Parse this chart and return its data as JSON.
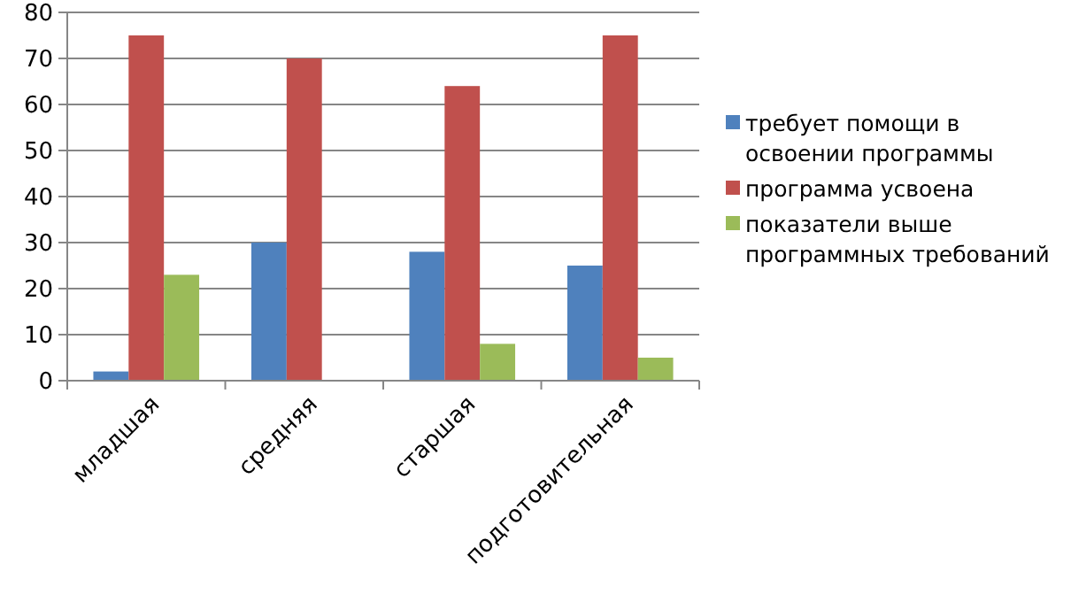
{
  "chart_data": {
    "type": "bar",
    "categories": [
      "младшая",
      "средняя",
      "старшая",
      "подготовительная"
    ],
    "series": [
      {
        "name": "требует помощи в освоении программы",
        "color": "#4f81bd",
        "values": [
          2,
          30,
          28,
          25
        ]
      },
      {
        "name": "программа усвоена",
        "color": "#c0504d",
        "values": [
          75,
          70,
          64,
          75
        ]
      },
      {
        "name": "показатели выше программных требований",
        "color": "#9bbb59",
        "values": [
          23,
          0,
          8,
          5
        ]
      }
    ],
    "ylim": [
      0,
      80
    ],
    "yticks": [
      0,
      10,
      20,
      30,
      40,
      50,
      60,
      70,
      80
    ],
    "grid": "y",
    "legend": "right"
  }
}
